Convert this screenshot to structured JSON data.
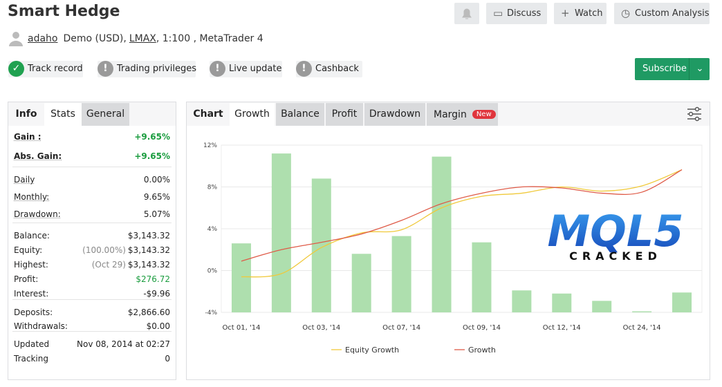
{
  "header": {
    "title": "Smart Hedge",
    "buttons": [
      "Discuss",
      "Watch",
      "Custom Analysis"
    ]
  },
  "account": {
    "user": "adaho",
    "type": "Demo (USD),",
    "broker": "LMAX",
    "details": ", 1:100 , MetaTrader 4"
  },
  "badges": [
    {
      "label": "Track record",
      "icon": "check"
    },
    {
      "label": "Trading privileges",
      "icon": "alert"
    },
    {
      "label": "Live update",
      "icon": "alert"
    },
    {
      "label": "Cashback",
      "icon": "alert"
    }
  ],
  "subscribe": "Subscribe",
  "stats_panel": {
    "tabs": [
      "Info",
      "Stats",
      "General"
    ],
    "groups": [
      [
        {
          "label": "Gain :",
          "value": "+9.65%",
          "color": "#1a9c3e"
        },
        {
          "label": "Abs. Gain:",
          "value": "+9.65%",
          "color": "#1a9c3e"
        }
      ],
      [
        {
          "label": "Daily",
          "value": "0.00%"
        },
        {
          "label": "Monthly:",
          "value": "9.65%"
        },
        {
          "label": "Drawdown:",
          "value": "5.07%"
        }
      ],
      [
        {
          "label": "Balance:",
          "value": "$3,143.32"
        },
        {
          "label": "Equity:",
          "note": "(100.00%)",
          "value": "$3,143.32"
        },
        {
          "label": "Highest:",
          "note": "(Oct 29)",
          "value": "$3,143.32"
        },
        {
          "label": "Profit:",
          "value": "$276.72",
          "color": "#1a9c3e"
        },
        {
          "label": "Interest:",
          "value": "-$9.96"
        }
      ],
      [
        {
          "label": "Deposits:",
          "value": "$2,866.60"
        },
        {
          "label": "Withdrawals:",
          "value": "$0.00"
        }
      ],
      [
        {
          "label": "Updated",
          "value": "Nov 08, 2014 at 02:27"
        },
        {
          "label": "Tracking",
          "value": "0"
        }
      ]
    ]
  },
  "chart_panel": {
    "tabs": [
      "Chart",
      "Growth",
      "Balance",
      "Profit",
      "Drawdown",
      "Margin"
    ],
    "badge": "New"
  },
  "chart_data": {
    "type": "combo",
    "categories": [
      "Oct 01, '14",
      null,
      "Oct 03, '14",
      null,
      "Oct 07, '14",
      null,
      "Oct 09, '14",
      null,
      "Oct 12, '14",
      null,
      "Oct 24, '14",
      null
    ],
    "ylim": [
      -4,
      12
    ],
    "yticks": [
      {
        "value": 12,
        "label": "12%"
      },
      {
        "value": 8,
        "label": "8%"
      },
      {
        "value": 4,
        "label": "4%"
      },
      {
        "value": 0,
        "label": "0%"
      },
      {
        "value": -4,
        "label": "-4%"
      }
    ],
    "grid": true,
    "series": [
      {
        "kind": "bar",
        "color": "#aedfae",
        "values": [
          2.6,
          11.2,
          8.8,
          1.6,
          3.3,
          10.9,
          2.7,
          -1.9,
          -2.2,
          -2.9,
          -3.9,
          -2.1
        ]
      },
      {
        "kind": "line",
        "name": "Equity Growth",
        "color": "#f0c93a",
        "values": [
          -0.6,
          -0.3,
          2.2,
          3.6,
          3.9,
          6.0,
          7.1,
          7.4,
          8.0,
          7.6,
          8.1,
          9.65
        ]
      },
      {
        "kind": "line",
        "name": "Growth",
        "color": "#df5b48",
        "values": [
          0.9,
          2.0,
          2.7,
          3.5,
          4.8,
          6.4,
          7.4,
          8.0,
          7.9,
          7.4,
          7.5,
          9.65
        ]
      }
    ],
    "legend": "bottom"
  },
  "watermark": {
    "logo": "MQL5",
    "caption": "CRACKED"
  }
}
